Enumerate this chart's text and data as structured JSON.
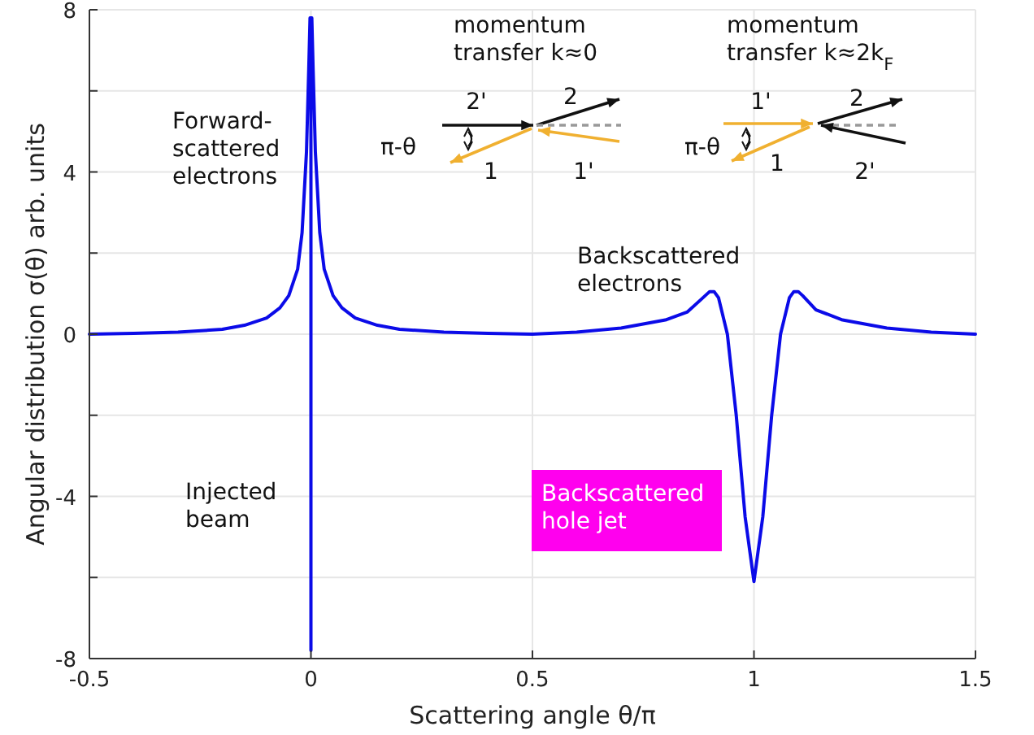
{
  "chart_data": {
    "type": "line",
    "xlabel": "Scattering angle θ/π",
    "ylabel": "Angular distribution σ(θ)  arb. units",
    "x": [
      -0.5,
      -0.4,
      -0.3,
      -0.2,
      -0.15,
      -0.1,
      -0.07,
      -0.05,
      -0.03,
      -0.02,
      -0.01,
      -0.005,
      -0.002,
      0,
      0,
      0,
      0.002,
      0.005,
      0.01,
      0.02,
      0.03,
      0.05,
      0.07,
      0.1,
      0.15,
      0.2,
      0.3,
      0.4,
      0.5,
      0.6,
      0.7,
      0.8,
      0.85,
      0.88,
      0.9,
      0.91,
      0.92,
      0.94,
      0.96,
      0.98,
      1.0,
      1.02,
      1.04,
      1.06,
      1.08,
      1.09,
      1.1,
      1.11,
      1.14,
      1.2,
      1.3,
      1.4,
      1.5
    ],
    "series": [
      {
        "color": "#0b0be8",
        "values": [
          0,
          0.02,
          0.05,
          0.12,
          0.22,
          0.4,
          0.65,
          0.95,
          1.6,
          2.5,
          4.5,
          6.5,
          7.8,
          7.8,
          -7.8,
          7.8,
          7.8,
          6.5,
          4.5,
          2.5,
          1.6,
          0.95,
          0.65,
          0.4,
          0.22,
          0.12,
          0.05,
          0.02,
          0,
          0.05,
          0.15,
          0.35,
          0.55,
          0.85,
          1.05,
          1.05,
          0.9,
          0,
          -2,
          -4.5,
          -6.1,
          -4.5,
          -2,
          0,
          0.9,
          1.05,
          1.05,
          0.95,
          0.6,
          0.35,
          0.15,
          0.05,
          0
        ]
      }
    ],
    "xlim": [
      -0.5,
      1.5
    ],
    "xticks": [
      -0.5,
      0,
      0.5,
      1,
      1.5
    ],
    "ylim": [
      -8,
      8
    ],
    "yticks": [
      -8,
      {
        "value": -6,
        "label": null
      },
      -4,
      {
        "value": -2,
        "label": null
      },
      0,
      {
        "value": 2,
        "label": null
      },
      4,
      {
        "value": 6,
        "label": null
      },
      8
    ],
    "grid": true,
    "marker": "none",
    "line_style": "solid",
    "annotations": [
      "Forward-\nscattered\nelectrons",
      "Injected\nbeam",
      "Backscattered\nelectrons",
      "Backscattered\nhole jet",
      "momentum\ntransfer k≈0",
      "momentum\ntransfer k≈2k$_{F}$",
      "2'",
      "2",
      "π-θ",
      "1",
      "1'",
      "1'",
      "2",
      "π-θ",
      "1",
      "2'"
    ]
  }
}
